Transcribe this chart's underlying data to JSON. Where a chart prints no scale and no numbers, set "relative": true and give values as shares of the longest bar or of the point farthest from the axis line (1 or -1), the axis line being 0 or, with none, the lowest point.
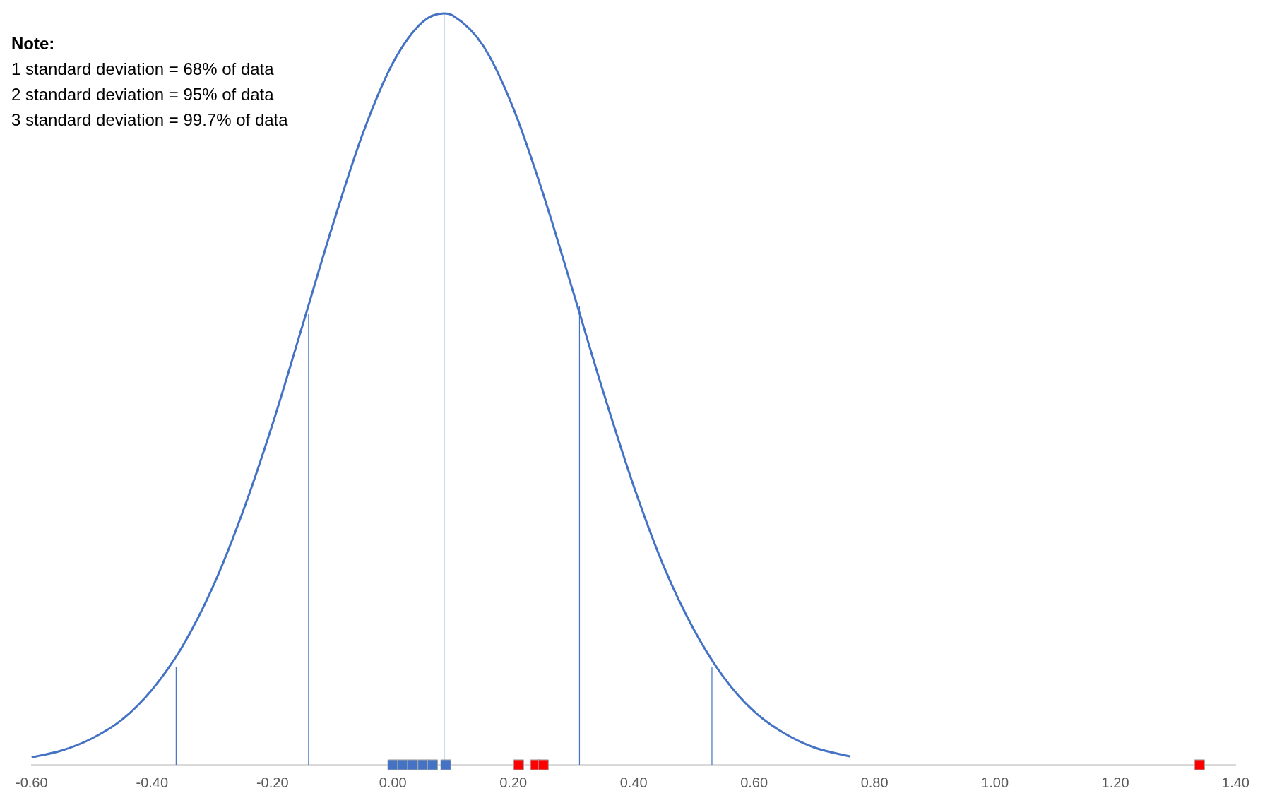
{
  "chart_data": {
    "type": "line",
    "relative": true,
    "annotations": [
      "Note:",
      "1 standard deviation = 68% of data",
      "2 standard deviation = 95% of data",
      "3 standard deviation = 99.7% of data"
    ],
    "xlim": [
      -0.6,
      1.4
    ],
    "xticks": [
      {
        "value": -0.6,
        "label": "-0.60"
      },
      {
        "value": -0.4,
        "label": "-0.40"
      },
      {
        "value": -0.2,
        "label": "-0.20"
      },
      {
        "value": 0,
        "label": "0.00"
      },
      {
        "value": 0.2,
        "label": "0.20"
      },
      {
        "value": 0.4,
        "label": "0.40"
      },
      {
        "value": 0.6,
        "label": "0.60"
      },
      {
        "value": 0.8,
        "label": "0.80"
      },
      {
        "value": 1,
        "label": "1.00"
      },
      {
        "value": 1.2,
        "label": "1.20"
      },
      {
        "value": 1.4,
        "label": "1.40"
      }
    ],
    "series": [
      {
        "color": "#4472c4",
        "x": [
          -0.6,
          -0.55,
          -0.5,
          -0.45,
          -0.4,
          -0.35,
          -0.3,
          -0.25,
          -0.2,
          -0.15,
          -0.1,
          -0.05,
          0,
          0.05,
          0.085,
          0.1,
          0.15,
          0.2,
          0.25,
          0.3,
          0.35,
          0.4,
          0.45,
          0.5,
          0.55,
          0.6,
          0.65,
          0.7,
          0.76
        ],
        "values": [
          0.01,
          0.019,
          0.035,
          0.06,
          0.1,
          0.157,
          0.235,
          0.335,
          0.453,
          0.585,
          0.718,
          0.84,
          0.934,
          0.989,
          1,
          0.997,
          0.957,
          0.874,
          0.759,
          0.628,
          0.495,
          0.371,
          0.264,
          0.18,
          0.116,
          0.071,
          0.042,
          0.023,
          0.011
        ]
      },
      {
        "type": "line",
        "color": "#4472c4",
        "x": [
          -0.36,
          -0.36
        ],
        "values": [
          0,
          0.13
        ]
      },
      {
        "type": "line",
        "color": "#4472c4",
        "x": [
          -0.14,
          -0.14
        ],
        "values": [
          0,
          0.6
        ]
      },
      {
        "type": "line",
        "color": "#4472c4",
        "x": [
          0.085,
          0.085
        ],
        "values": [
          0,
          1
        ]
      },
      {
        "type": "line",
        "color": "#4472c4",
        "x": [
          0.31,
          0.31
        ],
        "values": [
          0,
          0.61
        ]
      },
      {
        "type": "line",
        "color": "#4472c4",
        "x": [
          0.53,
          0.53
        ],
        "values": [
          0,
          0.13
        ]
      },
      {
        "type": "scatter",
        "color": "#4472c4",
        "marker": "square",
        "x": [
          0,
          0.016,
          0.033,
          0.05,
          0.066,
          0.088
        ],
        "values": [
          0,
          0,
          0,
          0,
          0,
          0
        ]
      },
      {
        "type": "scatter",
        "color": "#ff0000",
        "marker": "square",
        "x": [
          0.209,
          0.237,
          0.25,
          1.34
        ],
        "values": [
          0,
          0,
          0,
          0
        ]
      }
    ]
  }
}
